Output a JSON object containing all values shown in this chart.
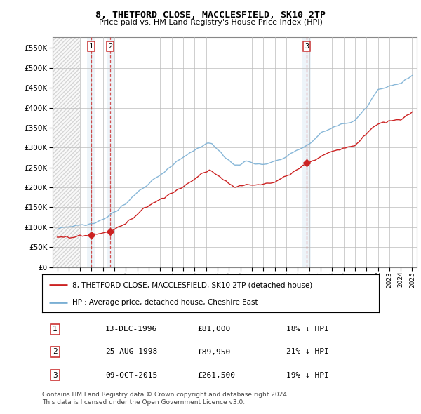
{
  "title": "8, THETFORD CLOSE, MACCLESFIELD, SK10 2TP",
  "subtitle": "Price paid vs. HM Land Registry's House Price Index (HPI)",
  "yticks": [
    0,
    50000,
    100000,
    150000,
    200000,
    250000,
    300000,
    350000,
    400000,
    450000,
    500000,
    550000
  ],
  "ylim": [
    0,
    577000
  ],
  "xlim_start": 1993.6,
  "xlim_end": 2025.4,
  "sale_dates": [
    1996.96,
    1998.65,
    2015.78
  ],
  "sale_prices": [
    81000,
    89950,
    261500
  ],
  "sale_labels": [
    "1",
    "2",
    "3"
  ],
  "vline_color": "#cc3333",
  "property_line_color": "#cc2222",
  "hpi_line_color": "#7aafd4",
  "hpi_fill_color": "#ddeeff",
  "legend_property": "8, THETFORD CLOSE, MACCLESFIELD, SK10 2TP (detached house)",
  "legend_hpi": "HPI: Average price, detached house, Cheshire East",
  "table_entries": [
    {
      "label": "1",
      "date": "13-DEC-1996",
      "price": "£81,000",
      "pct": "18% ↓ HPI"
    },
    {
      "label": "2",
      "date": "25-AUG-1998",
      "price": "£89,950",
      "pct": "21% ↓ HPI"
    },
    {
      "label": "3",
      "date": "09-OCT-2015",
      "price": "£261,500",
      "pct": "19% ↓ HPI"
    }
  ],
  "footer": "Contains HM Land Registry data © Crown copyright and database right 2024.\nThis data is licensed under the Open Government Licence v3.0."
}
